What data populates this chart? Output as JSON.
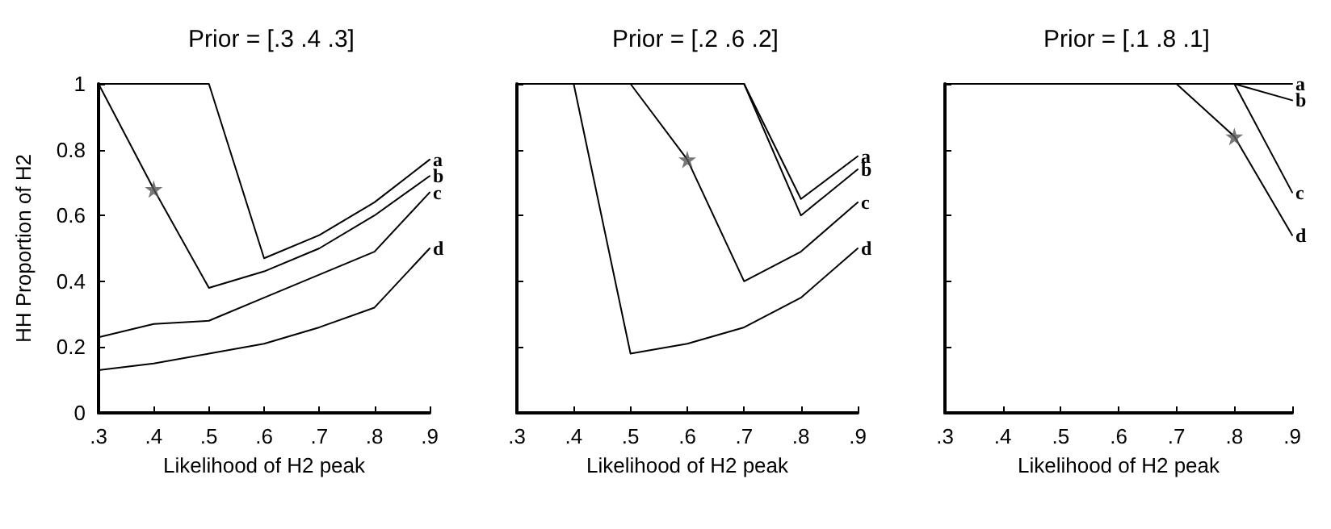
{
  "chart_data": [
    {
      "type": "line",
      "title": "Prior = [.3 .4 .3]",
      "xlabel": "Likelihood of H2 peak",
      "ylabel": "HH Proportion of H2",
      "x": [
        0.3,
        0.4,
        0.5,
        0.6,
        0.7,
        0.8,
        0.9
      ],
      "xlim": [
        0.3,
        0.9
      ],
      "xticks": [
        {
          "value": 0.3,
          "label": ".3"
        },
        {
          "value": 0.4,
          "label": ".4"
        },
        {
          "value": 0.5,
          "label": ".5"
        },
        {
          "value": 0.6,
          "label": ".6"
        },
        {
          "value": 0.7,
          "label": ".7"
        },
        {
          "value": 0.8,
          "label": ".8"
        },
        {
          "value": 0.9,
          "label": ".9"
        }
      ],
      "ylim": [
        0,
        1
      ],
      "yticks": [
        0,
        0.2,
        0.4,
        0.6,
        0.8,
        1
      ],
      "grid": false,
      "legend": false,
      "marker": "none",
      "series": [
        {
          "name": "a",
          "color": "#000000",
          "values": [
            1,
            1,
            1,
            0.47,
            0.54,
            0.64,
            0.77
          ]
        },
        {
          "name": "b",
          "color": "#000000",
          "values": [
            1,
            0.68,
            0.38,
            0.43,
            0.5,
            0.6,
            0.72
          ]
        },
        {
          "name": "c",
          "color": "#000000",
          "values": [
            0.23,
            0.27,
            0.28,
            0.35,
            0.42,
            0.49,
            0.67
          ]
        },
        {
          "name": "d",
          "color": "#000000",
          "values": [
            0.13,
            0.15,
            0.18,
            0.21,
            0.26,
            0.32,
            0.5
          ]
        },
        {
          "type": "scatter",
          "marker": "star",
          "color": "#555555",
          "x": [
            0.4
          ],
          "values": [
            0.68
          ]
        }
      ]
    },
    {
      "type": "line",
      "title": "Prior = [.2 .6 .2]",
      "xlabel": "Likelihood of H2 peak",
      "x": [
        0.3,
        0.4,
        0.5,
        0.6,
        0.7,
        0.8,
        0.9
      ],
      "xlim": [
        0.3,
        0.9
      ],
      "xticks": [
        {
          "value": 0.3,
          "label": ".3"
        },
        {
          "value": 0.4,
          "label": ".4"
        },
        {
          "value": 0.5,
          "label": ".5"
        },
        {
          "value": 0.6,
          "label": ".6"
        },
        {
          "value": 0.7,
          "label": ".7"
        },
        {
          "value": 0.8,
          "label": ".8"
        },
        {
          "value": 0.9,
          "label": ".9"
        }
      ],
      "ylim": [
        0,
        1
      ],
      "yticks": [
        0,
        0.2,
        0.4,
        0.6,
        0.8,
        1
      ],
      "tick_labels": "x",
      "grid": false,
      "legend": false,
      "marker": "none",
      "series": [
        {
          "name": "a",
          "color": "#000000",
          "values": [
            1,
            1,
            1,
            1,
            1,
            0.65,
            0.78
          ]
        },
        {
          "name": "b",
          "color": "#000000",
          "values": [
            1,
            1,
            1,
            1,
            1,
            0.6,
            0.74
          ]
        },
        {
          "name": "c",
          "color": "#000000",
          "values": [
            1,
            1,
            1,
            0.77,
            0.4,
            0.49,
            0.64
          ]
        },
        {
          "name": "d",
          "color": "#000000",
          "values": [
            1,
            1,
            0.18,
            0.21,
            0.26,
            0.35,
            0.5
          ]
        },
        {
          "type": "scatter",
          "marker": "star",
          "color": "#555555",
          "x": [
            0.6
          ],
          "values": [
            0.77
          ]
        }
      ]
    },
    {
      "type": "line",
      "title": "Prior = [.1 .8 .1]",
      "xlabel": "Likelihood of H2 peak",
      "x": [
        0.3,
        0.4,
        0.5,
        0.6,
        0.7,
        0.8,
        0.9
      ],
      "xlim": [
        0.3,
        0.9
      ],
      "xticks": [
        {
          "value": 0.3,
          "label": ".3"
        },
        {
          "value": 0.4,
          "label": ".4"
        },
        {
          "value": 0.5,
          "label": ".5"
        },
        {
          "value": 0.6,
          "label": ".6"
        },
        {
          "value": 0.7,
          "label": ".7"
        },
        {
          "value": 0.8,
          "label": ".8"
        },
        {
          "value": 0.9,
          "label": ".9"
        }
      ],
      "ylim": [
        0,
        1
      ],
      "yticks": [
        0,
        0.2,
        0.4,
        0.6,
        0.8,
        1
      ],
      "tick_labels": "x",
      "grid": false,
      "legend": false,
      "marker": "none",
      "series": [
        {
          "name": "a",
          "color": "#000000",
          "values": [
            1,
            1,
            1,
            1,
            1,
            1,
            1
          ]
        },
        {
          "name": "b",
          "color": "#000000",
          "values": [
            1,
            1,
            1,
            1,
            1,
            1,
            0.95
          ]
        },
        {
          "name": "c",
          "color": "#000000",
          "values": [
            1,
            1,
            1,
            1,
            1,
            1,
            0.67
          ]
        },
        {
          "name": "d",
          "color": "#000000",
          "values": [
            1,
            1,
            1,
            1,
            1,
            0.84,
            0.54
          ]
        },
        {
          "type": "scatter",
          "marker": "star",
          "color": "#555555",
          "x": [
            0.8
          ],
          "values": [
            0.84
          ]
        }
      ]
    }
  ]
}
